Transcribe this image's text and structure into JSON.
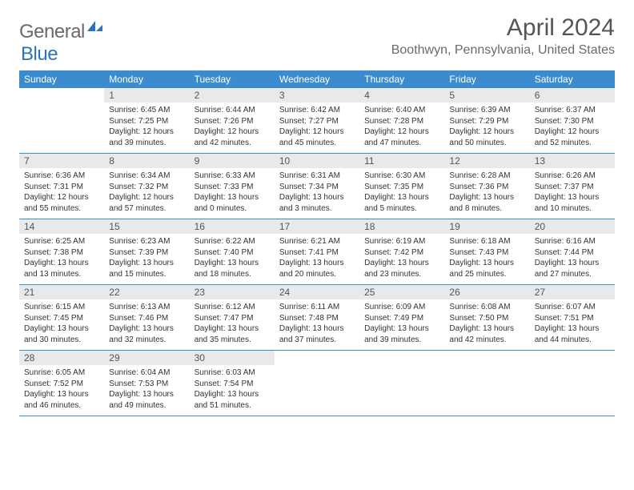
{
  "brand": {
    "part1": "General",
    "part2": "Blue",
    "mark_color": "#2b74b8"
  },
  "title": "April 2024",
  "location": "Boothwyn, Pennsylvania, United States",
  "header_bg": "#3b8ccf",
  "header_fg": "#ffffff",
  "daynum_bg": "#e8e9ea",
  "rule_color": "#3b8ccf",
  "weekdays": [
    "Sunday",
    "Monday",
    "Tuesday",
    "Wednesday",
    "Thursday",
    "Friday",
    "Saturday"
  ],
  "weeks": [
    [
      null,
      {
        "n": "1",
        "sr": "Sunrise: 6:45 AM",
        "ss": "Sunset: 7:25 PM",
        "d1": "Daylight: 12 hours",
        "d2": "and 39 minutes."
      },
      {
        "n": "2",
        "sr": "Sunrise: 6:44 AM",
        "ss": "Sunset: 7:26 PM",
        "d1": "Daylight: 12 hours",
        "d2": "and 42 minutes."
      },
      {
        "n": "3",
        "sr": "Sunrise: 6:42 AM",
        "ss": "Sunset: 7:27 PM",
        "d1": "Daylight: 12 hours",
        "d2": "and 45 minutes."
      },
      {
        "n": "4",
        "sr": "Sunrise: 6:40 AM",
        "ss": "Sunset: 7:28 PM",
        "d1": "Daylight: 12 hours",
        "d2": "and 47 minutes."
      },
      {
        "n": "5",
        "sr": "Sunrise: 6:39 AM",
        "ss": "Sunset: 7:29 PM",
        "d1": "Daylight: 12 hours",
        "d2": "and 50 minutes."
      },
      {
        "n": "6",
        "sr": "Sunrise: 6:37 AM",
        "ss": "Sunset: 7:30 PM",
        "d1": "Daylight: 12 hours",
        "d2": "and 52 minutes."
      }
    ],
    [
      {
        "n": "7",
        "sr": "Sunrise: 6:36 AM",
        "ss": "Sunset: 7:31 PM",
        "d1": "Daylight: 12 hours",
        "d2": "and 55 minutes."
      },
      {
        "n": "8",
        "sr": "Sunrise: 6:34 AM",
        "ss": "Sunset: 7:32 PM",
        "d1": "Daylight: 12 hours",
        "d2": "and 57 minutes."
      },
      {
        "n": "9",
        "sr": "Sunrise: 6:33 AM",
        "ss": "Sunset: 7:33 PM",
        "d1": "Daylight: 13 hours",
        "d2": "and 0 minutes."
      },
      {
        "n": "10",
        "sr": "Sunrise: 6:31 AM",
        "ss": "Sunset: 7:34 PM",
        "d1": "Daylight: 13 hours",
        "d2": "and 3 minutes."
      },
      {
        "n": "11",
        "sr": "Sunrise: 6:30 AM",
        "ss": "Sunset: 7:35 PM",
        "d1": "Daylight: 13 hours",
        "d2": "and 5 minutes."
      },
      {
        "n": "12",
        "sr": "Sunrise: 6:28 AM",
        "ss": "Sunset: 7:36 PM",
        "d1": "Daylight: 13 hours",
        "d2": "and 8 minutes."
      },
      {
        "n": "13",
        "sr": "Sunrise: 6:26 AM",
        "ss": "Sunset: 7:37 PM",
        "d1": "Daylight: 13 hours",
        "d2": "and 10 minutes."
      }
    ],
    [
      {
        "n": "14",
        "sr": "Sunrise: 6:25 AM",
        "ss": "Sunset: 7:38 PM",
        "d1": "Daylight: 13 hours",
        "d2": "and 13 minutes."
      },
      {
        "n": "15",
        "sr": "Sunrise: 6:23 AM",
        "ss": "Sunset: 7:39 PM",
        "d1": "Daylight: 13 hours",
        "d2": "and 15 minutes."
      },
      {
        "n": "16",
        "sr": "Sunrise: 6:22 AM",
        "ss": "Sunset: 7:40 PM",
        "d1": "Daylight: 13 hours",
        "d2": "and 18 minutes."
      },
      {
        "n": "17",
        "sr": "Sunrise: 6:21 AM",
        "ss": "Sunset: 7:41 PM",
        "d1": "Daylight: 13 hours",
        "d2": "and 20 minutes."
      },
      {
        "n": "18",
        "sr": "Sunrise: 6:19 AM",
        "ss": "Sunset: 7:42 PM",
        "d1": "Daylight: 13 hours",
        "d2": "and 23 minutes."
      },
      {
        "n": "19",
        "sr": "Sunrise: 6:18 AM",
        "ss": "Sunset: 7:43 PM",
        "d1": "Daylight: 13 hours",
        "d2": "and 25 minutes."
      },
      {
        "n": "20",
        "sr": "Sunrise: 6:16 AM",
        "ss": "Sunset: 7:44 PM",
        "d1": "Daylight: 13 hours",
        "d2": "and 27 minutes."
      }
    ],
    [
      {
        "n": "21",
        "sr": "Sunrise: 6:15 AM",
        "ss": "Sunset: 7:45 PM",
        "d1": "Daylight: 13 hours",
        "d2": "and 30 minutes."
      },
      {
        "n": "22",
        "sr": "Sunrise: 6:13 AM",
        "ss": "Sunset: 7:46 PM",
        "d1": "Daylight: 13 hours",
        "d2": "and 32 minutes."
      },
      {
        "n": "23",
        "sr": "Sunrise: 6:12 AM",
        "ss": "Sunset: 7:47 PM",
        "d1": "Daylight: 13 hours",
        "d2": "and 35 minutes."
      },
      {
        "n": "24",
        "sr": "Sunrise: 6:11 AM",
        "ss": "Sunset: 7:48 PM",
        "d1": "Daylight: 13 hours",
        "d2": "and 37 minutes."
      },
      {
        "n": "25",
        "sr": "Sunrise: 6:09 AM",
        "ss": "Sunset: 7:49 PM",
        "d1": "Daylight: 13 hours",
        "d2": "and 39 minutes."
      },
      {
        "n": "26",
        "sr": "Sunrise: 6:08 AM",
        "ss": "Sunset: 7:50 PM",
        "d1": "Daylight: 13 hours",
        "d2": "and 42 minutes."
      },
      {
        "n": "27",
        "sr": "Sunrise: 6:07 AM",
        "ss": "Sunset: 7:51 PM",
        "d1": "Daylight: 13 hours",
        "d2": "and 44 minutes."
      }
    ],
    [
      {
        "n": "28",
        "sr": "Sunrise: 6:05 AM",
        "ss": "Sunset: 7:52 PM",
        "d1": "Daylight: 13 hours",
        "d2": "and 46 minutes."
      },
      {
        "n": "29",
        "sr": "Sunrise: 6:04 AM",
        "ss": "Sunset: 7:53 PM",
        "d1": "Daylight: 13 hours",
        "d2": "and 49 minutes."
      },
      {
        "n": "30",
        "sr": "Sunrise: 6:03 AM",
        "ss": "Sunset: 7:54 PM",
        "d1": "Daylight: 13 hours",
        "d2": "and 51 minutes."
      },
      null,
      null,
      null,
      null
    ]
  ]
}
